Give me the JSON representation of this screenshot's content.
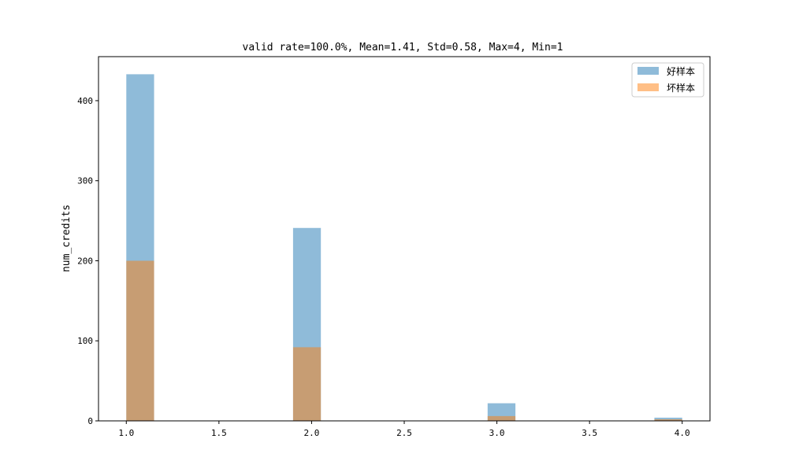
{
  "chart_data": {
    "type": "bar",
    "title": "valid rate=100.0%, Mean=1.41, Std=0.58, Max=4, Min=1",
    "xlabel": "",
    "ylabel": "num_credits",
    "xlim": [
      0.85,
      4.15
    ],
    "ylim": [
      0,
      455
    ],
    "x_ticks": [
      1.0,
      1.5,
      2.0,
      2.5,
      3.0,
      3.5,
      4.0
    ],
    "x_tick_labels": [
      "1.0",
      "1.5",
      "2.0",
      "2.5",
      "3.0",
      "3.5",
      "4.0"
    ],
    "y_ticks": [
      0,
      100,
      200,
      300,
      400
    ],
    "y_tick_labels": [
      "0",
      "100",
      "200",
      "300",
      "400"
    ],
    "bin_width": 0.15,
    "legend": {
      "position": "top-right",
      "entries": [
        "好样本",
        "坏样本"
      ]
    },
    "series": [
      {
        "name": "好样本",
        "color": "#1f77b4",
        "opacity": 0.5,
        "bins": [
          {
            "x0": 1.0,
            "value": 433
          },
          {
            "x0": 1.9,
            "value": 241
          },
          {
            "x0": 2.95,
            "value": 22
          },
          {
            "x0": 3.85,
            "value": 4
          }
        ]
      },
      {
        "name": "坏样本",
        "color": "#ff7f0e",
        "opacity": 0.5,
        "bins": [
          {
            "x0": 1.0,
            "value": 200
          },
          {
            "x0": 1.9,
            "value": 92
          },
          {
            "x0": 2.95,
            "value": 6
          },
          {
            "x0": 3.85,
            "value": 2
          }
        ]
      }
    ]
  }
}
